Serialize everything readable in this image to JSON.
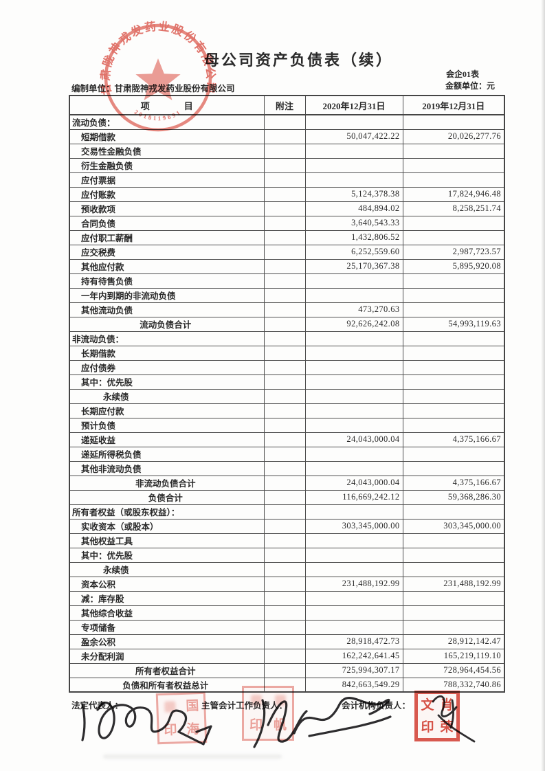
{
  "page": {
    "title": "母公司资产负债表（续）",
    "form_code": "会企01表",
    "unit_note": "金额单位：元",
    "prepared_by": "编制单位：甘肃陇神戎发药业股份有限公司"
  },
  "seal": {
    "company": "甘肃陇神戎发药业股份有限公司",
    "serial": "2010119691"
  },
  "table": {
    "header": {
      "item": "项 目",
      "note": "附注",
      "date2020": "2020年12月31日",
      "date2019": "2019年12月31日"
    },
    "rows": [
      {
        "type": "section",
        "label": "流动负债：",
        "v2020": "",
        "v2019": ""
      },
      {
        "type": "item",
        "label": "短期借款",
        "v2020": "50,047,422.22",
        "v2019": "20,026,277.76"
      },
      {
        "type": "item",
        "label": "交易性金融负债",
        "v2020": "",
        "v2019": ""
      },
      {
        "type": "item",
        "label": "衍生金融负债",
        "v2020": "",
        "v2019": ""
      },
      {
        "type": "item",
        "label": "应付票据",
        "v2020": "",
        "v2019": ""
      },
      {
        "type": "item",
        "label": "应付账款",
        "v2020": "5,124,378.38",
        "v2019": "17,824,946.48"
      },
      {
        "type": "item",
        "label": "预收款项",
        "v2020": "484,894.02",
        "v2019": "8,258,251.74"
      },
      {
        "type": "item",
        "label": "合同负债",
        "v2020": "3,640,543.33",
        "v2019": ""
      },
      {
        "type": "item",
        "label": "应付职工薪酬",
        "v2020": "1,432,806.52",
        "v2019": ""
      },
      {
        "type": "item",
        "label": "应交税费",
        "v2020": "6,252,559.60",
        "v2019": "2,987,723.57"
      },
      {
        "type": "item",
        "label": "其他应付款",
        "v2020": "25,170,367.38",
        "v2019": "5,895,920.08"
      },
      {
        "type": "item",
        "label": "持有待售负债",
        "v2020": "",
        "v2019": ""
      },
      {
        "type": "item",
        "label": "一年内到期的非流动负债",
        "v2020": "",
        "v2019": ""
      },
      {
        "type": "item",
        "label": "其他流动负债",
        "v2020": "473,270.63",
        "v2019": ""
      },
      {
        "type": "total",
        "label": "流动负债合计",
        "v2020": "92,626,242.08",
        "v2019": "54,993,119.63"
      },
      {
        "type": "section",
        "label": "非流动负债：",
        "v2020": "",
        "v2019": ""
      },
      {
        "type": "item",
        "label": "长期借款",
        "v2020": "",
        "v2019": ""
      },
      {
        "type": "item",
        "label": "应付债券",
        "v2020": "",
        "v2019": ""
      },
      {
        "type": "item",
        "label": "其中：优先股",
        "v2020": "",
        "v2019": ""
      },
      {
        "type": "item2",
        "label": "永续债",
        "v2020": "",
        "v2019": ""
      },
      {
        "type": "item",
        "label": "长期应付款",
        "v2020": "",
        "v2019": ""
      },
      {
        "type": "item",
        "label": "预计负债",
        "v2020": "",
        "v2019": ""
      },
      {
        "type": "item",
        "label": "递延收益",
        "v2020": "24,043,000.04",
        "v2019": "4,375,166.67"
      },
      {
        "type": "item",
        "label": "递延所得税负债",
        "v2020": "",
        "v2019": ""
      },
      {
        "type": "item",
        "label": "其他非流动负债",
        "v2020": "",
        "v2019": ""
      },
      {
        "type": "total",
        "label": "非流动负债合计",
        "v2020": "24,043,000.04",
        "v2019": "4,375,166.67"
      },
      {
        "type": "total",
        "label": "负债合计",
        "v2020": "116,669,242.12",
        "v2019": "59,368,286.30"
      },
      {
        "type": "section",
        "label": "所有者权益（或股东权益）：",
        "v2020": "",
        "v2019": ""
      },
      {
        "type": "item",
        "label": "实收资本（或股本）",
        "v2020": "303,345,000.00",
        "v2019": "303,345,000.00"
      },
      {
        "type": "item",
        "label": "其他权益工具",
        "v2020": "",
        "v2019": ""
      },
      {
        "type": "item",
        "label": "其中：优先股",
        "v2020": "",
        "v2019": ""
      },
      {
        "type": "item2",
        "label": "永续债",
        "v2020": "",
        "v2019": ""
      },
      {
        "type": "item",
        "label": "资本公积",
        "v2020": "231,488,192.99",
        "v2019": "231,488,192.99"
      },
      {
        "type": "item",
        "label": "减：库存股",
        "v2020": "",
        "v2019": ""
      },
      {
        "type": "item",
        "label": "其他综合收益",
        "v2020": "",
        "v2019": ""
      },
      {
        "type": "item",
        "label": "专项储备",
        "v2020": "",
        "v2019": ""
      },
      {
        "type": "item",
        "label": "盈余公积",
        "v2020": "28,918,472.73",
        "v2019": "28,912,142.47"
      },
      {
        "type": "item",
        "label": "未分配利润",
        "v2020": "162,242,641.45",
        "v2019": "165,219,119.10"
      },
      {
        "type": "total",
        "label": "所有者权益合计",
        "v2020": "725,994,307.17",
        "v2019": "728,964,454.56"
      },
      {
        "type": "total",
        "label": "负债和所有者权益总计",
        "v2020": "842,663,549.29",
        "v2019": "788,332,740.86"
      }
    ]
  },
  "footer": {
    "legal_rep_label": "法定代表人：",
    "chief_accountant_label": "主管会计工作负责人：",
    "accounting_dept_label": "会计机构负责人：",
    "stamps": [
      {
        "key": "stamp-legal-rep-seal",
        "cells": [
          "",
          "国",
          "印",
          "海"
        ]
      },
      {
        "key": "stamp-chief-accountant-seal",
        "cells": [
          "",
          "",
          "印",
          "帆"
        ]
      },
      {
        "key": "stamp-accounting-dept-seal",
        "cells": [
          "文",
          "肖",
          "印",
          "荣"
        ]
      }
    ]
  }
}
